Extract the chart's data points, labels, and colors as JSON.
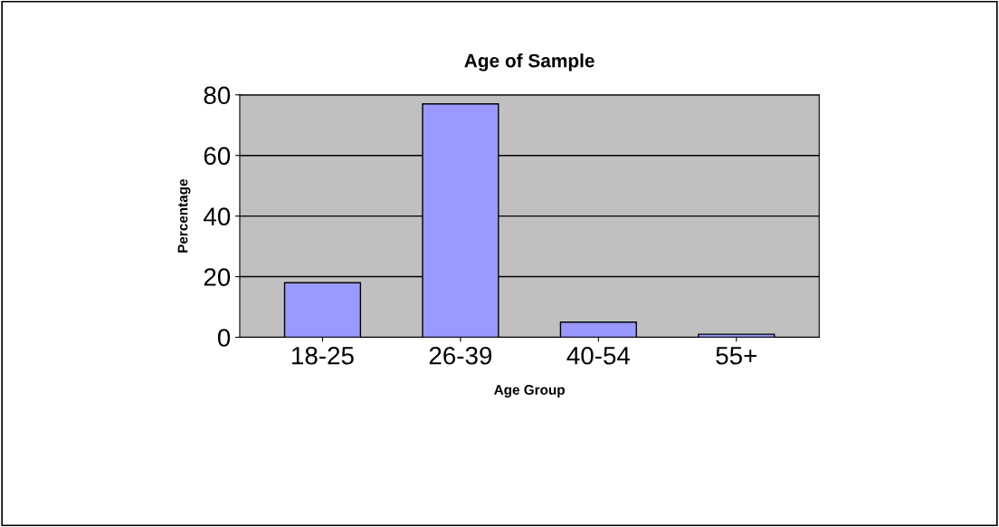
{
  "chart_data": {
    "type": "bar",
    "title": "Age of Sample",
    "xlabel": "Age Group",
    "ylabel": "Percentage",
    "categories": [
      "18-25",
      "26-39",
      "40-54",
      "55+"
    ],
    "values": [
      18,
      77,
      5,
      1
    ],
    "color": "#9999ff",
    "ylim": [
      0,
      80
    ],
    "yticks": [
      0,
      20,
      40,
      60,
      80
    ],
    "grid": "y"
  }
}
